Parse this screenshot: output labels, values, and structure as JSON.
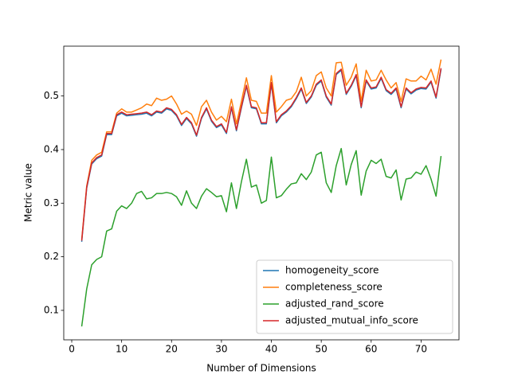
{
  "chart_data": {
    "type": "line",
    "x_label": "Number of Dimensions",
    "y_label": "Metric value",
    "x": [
      2,
      3,
      4,
      5,
      6,
      7,
      8,
      9,
      10,
      11,
      12,
      13,
      14,
      15,
      16,
      17,
      18,
      19,
      20,
      21,
      22,
      23,
      24,
      25,
      26,
      27,
      28,
      29,
      30,
      31,
      32,
      33,
      34,
      35,
      36,
      37,
      38,
      39,
      40,
      41,
      42,
      43,
      44,
      45,
      46,
      47,
      48,
      49,
      50,
      51,
      52,
      53,
      54,
      55,
      56,
      57,
      58,
      59,
      60,
      61,
      62,
      63,
      64,
      65,
      66,
      67,
      68,
      69,
      70,
      71,
      72,
      73,
      74
    ],
    "series": [
      {
        "name": "homogeneity_score",
        "color": "#1f77b4",
        "values": [
          0.228,
          0.328,
          0.373,
          0.383,
          0.388,
          0.428,
          0.428,
          0.463,
          0.468,
          0.463,
          0.464,
          0.465,
          0.466,
          0.468,
          0.463,
          0.47,
          0.468,
          0.476,
          0.473,
          0.463,
          0.445,
          0.458,
          0.448,
          0.425,
          0.458,
          0.476,
          0.453,
          0.441,
          0.446,
          0.43,
          0.478,
          0.435,
          0.478,
          0.518,
          0.478,
          0.476,
          0.448,
          0.448,
          0.523,
          0.45,
          0.463,
          0.47,
          0.48,
          0.495,
          0.513,
          0.486,
          0.498,
          0.52,
          0.528,
          0.498,
          0.483,
          0.54,
          0.548,
          0.503,
          0.518,
          0.538,
          0.478,
          0.528,
          0.513,
          0.515,
          0.533,
          0.51,
          0.503,
          0.513,
          0.478,
          0.513,
          0.504,
          0.511,
          0.514,
          0.513,
          0.526,
          0.496,
          0.55
        ]
      },
      {
        "name": "completeness_score",
        "color": "#ff7f0e",
        "values": [
          0.232,
          0.332,
          0.38,
          0.39,
          0.395,
          0.433,
          0.433,
          0.468,
          0.476,
          0.47,
          0.47,
          0.474,
          0.478,
          0.485,
          0.482,
          0.496,
          0.492,
          0.494,
          0.5,
          0.485,
          0.466,
          0.472,
          0.466,
          0.445,
          0.48,
          0.492,
          0.47,
          0.455,
          0.462,
          0.452,
          0.494,
          0.448,
          0.49,
          0.534,
          0.492,
          0.49,
          0.468,
          0.468,
          0.538,
          0.47,
          0.48,
          0.492,
          0.495,
          0.508,
          0.535,
          0.5,
          0.51,
          0.538,
          0.545,
          0.515,
          0.5,
          0.562,
          0.563,
          0.52,
          0.535,
          0.56,
          0.49,
          0.548,
          0.528,
          0.53,
          0.548,
          0.53,
          0.515,
          0.525,
          0.49,
          0.532,
          0.528,
          0.528,
          0.537,
          0.53,
          0.55,
          0.522,
          0.568
        ]
      },
      {
        "name": "adjusted_rand_score",
        "color": "#2ca02c",
        "values": [
          0.07,
          0.14,
          0.185,
          0.195,
          0.2,
          0.248,
          0.252,
          0.285,
          0.295,
          0.29,
          0.3,
          0.318,
          0.322,
          0.308,
          0.31,
          0.318,
          0.318,
          0.32,
          0.318,
          0.312,
          0.296,
          0.323,
          0.3,
          0.29,
          0.313,
          0.327,
          0.32,
          0.312,
          0.314,
          0.284,
          0.338,
          0.29,
          0.34,
          0.382,
          0.33,
          0.334,
          0.3,
          0.305,
          0.386,
          0.31,
          0.314,
          0.326,
          0.336,
          0.338,
          0.355,
          0.344,
          0.358,
          0.39,
          0.395,
          0.338,
          0.32,
          0.37,
          0.402,
          0.334,
          0.372,
          0.398,
          0.315,
          0.36,
          0.38,
          0.374,
          0.382,
          0.35,
          0.347,
          0.362,
          0.306,
          0.345,
          0.347,
          0.358,
          0.354,
          0.37,
          0.345,
          0.313,
          0.388
        ]
      },
      {
        "name": "adjusted_mutual_info_score",
        "color": "#d62728",
        "values": [
          0.23,
          0.33,
          0.375,
          0.385,
          0.39,
          0.43,
          0.43,
          0.465,
          0.47,
          0.465,
          0.466,
          0.467,
          0.468,
          0.47,
          0.465,
          0.472,
          0.47,
          0.478,
          0.475,
          0.465,
          0.447,
          0.46,
          0.45,
          0.427,
          0.46,
          0.478,
          0.455,
          0.443,
          0.448,
          0.432,
          0.48,
          0.437,
          0.48,
          0.52,
          0.48,
          0.478,
          0.45,
          0.45,
          0.525,
          0.452,
          0.465,
          0.472,
          0.482,
          0.497,
          0.515,
          0.488,
          0.5,
          0.522,
          0.53,
          0.5,
          0.485,
          0.542,
          0.55,
          0.505,
          0.52,
          0.54,
          0.48,
          0.53,
          0.515,
          0.517,
          0.535,
          0.512,
          0.505,
          0.515,
          0.48,
          0.515,
          0.506,
          0.513,
          0.516,
          0.515,
          0.528,
          0.498,
          0.552
        ]
      }
    ],
    "xlim": [
      -1.6,
      77.6
    ],
    "ylim": [
      0.045,
      0.593
    ],
    "xticks": [
      0,
      10,
      20,
      30,
      40,
      50,
      60,
      70
    ],
    "yticks": [
      0.1,
      0.2,
      0.3,
      0.4,
      0.5
    ],
    "grid": false,
    "legend": "lower right"
  }
}
